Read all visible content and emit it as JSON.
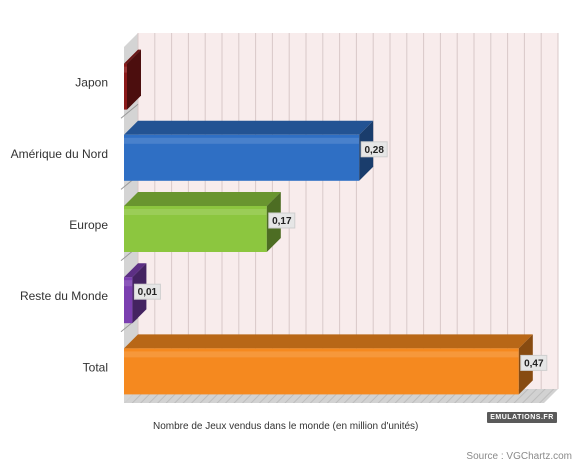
{
  "chart_data": {
    "type": "bar",
    "orientation": "horizontal",
    "categories": [
      "Japon",
      "Amérique du Nord",
      "Europe",
      "Reste du Monde",
      "Total"
    ],
    "values": [
      0.0,
      0.28,
      0.17,
      0.01,
      0.47
    ],
    "value_labels": [
      "",
      "0,28",
      "0,17",
      "0,01",
      "0,47"
    ],
    "colors": [
      "#8b1a1a",
      "#2f6fc4",
      "#8cc63f",
      "#7b3fb0",
      "#f5891f"
    ],
    "xlabel": "Nombre de Jeux vendus dans le monde (en million d'unités)",
    "xlim": [
      0,
      0.5
    ],
    "grid": true
  },
  "source": "Source : VGChartz.com",
  "logo_text": "EMULATIONS.FR"
}
